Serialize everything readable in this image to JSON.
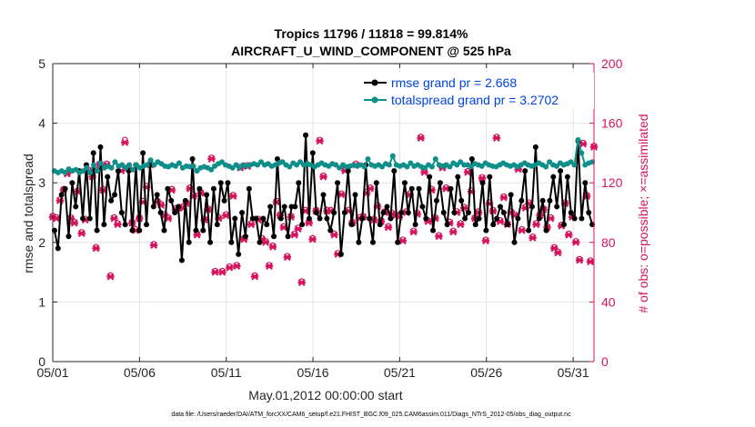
{
  "chart_data": {
    "type": "line",
    "title_line1": "Tropics 11796 / 11818 = 99.814%",
    "title_line2": "AIRCRAFT_U_WIND_COMPONENT @ 525 hPa",
    "xlabel": "May.01,2012 00:00:00 start",
    "ylabel_left": "rmse and totalspread",
    "ylabel_right": "# of obs: o=possible; ×=assimilated",
    "xlim": [
      0,
      31.2
    ],
    "ylim_left": [
      0,
      5
    ],
    "ylim_right": [
      0,
      200
    ],
    "x_ticks": [
      0,
      5,
      10,
      15,
      20,
      25,
      30
    ],
    "x_tick_labels": [
      "05/01",
      "05/06",
      "05/11",
      "05/16",
      "05/21",
      "05/26",
      "05/31"
    ],
    "y_ticks_left": [
      0,
      1,
      2,
      3,
      4,
      5
    ],
    "y_tick_labels_left": [
      "0",
      "1",
      "2",
      "3",
      "4",
      "5"
    ],
    "y_ticks_right": [
      0,
      40,
      80,
      120,
      160,
      200
    ],
    "y_tick_labels_right": [
      "0",
      "40",
      "80",
      "120",
      "160",
      "200"
    ],
    "footnote": "data file: /Users/raeder/DAI/ATM_forcXX/CAM6_setup/f.e21.FHIST_BGC.f09_025.CAM6assim.011/Diags_NTrS_2012-05/obs_diag_output.nc",
    "series": [
      {
        "name": "rmse",
        "legend_label": "rmse grand pr = 2.668",
        "color": "#000000",
        "values": [
          2.2,
          1.9,
          2.8,
          2.9,
          2.1,
          3.0,
          2.6,
          3.2,
          2.4,
          3.3,
          2.4,
          3.5,
          2.2,
          3.6,
          2.3,
          3.1,
          2.7,
          2.8,
          3.2,
          2.5,
          2.3,
          3.2,
          2.2,
          3.3,
          2.2,
          3.5,
          2.3,
          3.3,
          2.6,
          2.8,
          2.5,
          2.2,
          2.9,
          2.7,
          2.5,
          2.6,
          1.7,
          2.7,
          2.0,
          3.4,
          2.2,
          2.9,
          2.2,
          2.8,
          2.0,
          2.9,
          2.3,
          3.0,
          2.7,
          3.0,
          2.0,
          2.4,
          1.8,
          2.5,
          2.1,
          2.9,
          2.4,
          2.4,
          2.0,
          2.4,
          2.3,
          2.6,
          2.1,
          3.4,
          2.4,
          2.6,
          2.1,
          2.6,
          2.6,
          3.0,
          2.3,
          3.8,
          2.4,
          3.5,
          2.5,
          2.4,
          2.8,
          2.4,
          2.2,
          2.5,
          3.0,
          1.8,
          2.5,
          3.2,
          2.3,
          2.8,
          2.0,
          2.4,
          3.3,
          2.4,
          2.0,
          3.0,
          2.3,
          2.5,
          2.6,
          2.4,
          3.2,
          2.0,
          2.5,
          3.0,
          2.5,
          2.9,
          2.3,
          2.9,
          2.6,
          2.4,
          3.1,
          2.2,
          2.7,
          3.0,
          2.5,
          2.3,
          2.9,
          2.5,
          3.1,
          2.7,
          2.4,
          2.5,
          3.4,
          2.3,
          2.4,
          3.0,
          2.2,
          3.1,
          2.3,
          2.4,
          2.6,
          2.5,
          2.3,
          2.8,
          2.0,
          2.4,
          2.7,
          3.2,
          2.2,
          2.6,
          3.6,
          2.4,
          2.7,
          2.2,
          2.7,
          3.1,
          2.6,
          3.2,
          2.3,
          3.1,
          2.5,
          2.4,
          3.7,
          2.4,
          3.0,
          2.5,
          2.3
        ]
      },
      {
        "name": "totalspread",
        "legend_label": "totalspread grand pr = 3.2702",
        "color": "#0f8f8a",
        "values": [
          3.2,
          3.17,
          3.2,
          3.17,
          3.23,
          3.2,
          3.22,
          3.17,
          3.2,
          3.25,
          3.17,
          3.3,
          3.2,
          3.33,
          3.25,
          3.28,
          3.25,
          3.35,
          3.28,
          3.3,
          3.25,
          3.3,
          3.22,
          3.3,
          3.25,
          3.28,
          3.3,
          3.38,
          3.3,
          3.35,
          3.32,
          3.28,
          3.27,
          3.3,
          3.28,
          3.33,
          3.25,
          3.28,
          3.27,
          3.28,
          3.2,
          3.25,
          3.27,
          3.25,
          3.22,
          3.28,
          3.32,
          3.35,
          3.3,
          3.28,
          3.25,
          3.3,
          3.25,
          3.3,
          3.28,
          3.3,
          3.32,
          3.3,
          3.35,
          3.3,
          3.32,
          3.28,
          3.3,
          3.33,
          3.35,
          3.3,
          3.27,
          3.33,
          3.3,
          3.35,
          3.3,
          3.32,
          3.3,
          3.27,
          3.3,
          3.33,
          3.3,
          3.28,
          3.32,
          3.3,
          3.25,
          3.3,
          3.27,
          3.28,
          3.3,
          3.28,
          3.3,
          3.27,
          3.4,
          3.3,
          3.28,
          3.3,
          3.27,
          3.32,
          3.3,
          3.45,
          3.3,
          3.28,
          3.3,
          3.27,
          3.33,
          3.28,
          3.3,
          3.27,
          3.25,
          3.3,
          3.27,
          3.4,
          3.3,
          3.28,
          3.3,
          3.27,
          3.33,
          3.3,
          3.35,
          3.3,
          3.3,
          3.27,
          3.32,
          3.3,
          3.28,
          3.33,
          3.3,
          3.28,
          3.27,
          3.3,
          3.33,
          3.3,
          3.28,
          3.3,
          3.27,
          3.3,
          3.33,
          3.3,
          3.28,
          3.3,
          3.33,
          3.3,
          3.27,
          3.35,
          3.3,
          3.28,
          3.33,
          3.3,
          3.32,
          3.35,
          3.3,
          3.72,
          3.5,
          3.3,
          3.33,
          3.35
        ]
      }
    ],
    "obs_assimilated": {
      "name": "# of obs assimilated",
      "marker": "×",
      "color": "#d6135e",
      "values": [
        97,
        96,
        108,
        115,
        126,
        96,
        93,
        114,
        86,
        95,
        128,
        124,
        76,
        132,
        115,
        132,
        57,
        96,
        92,
        128,
        147,
        130,
        93,
        88,
        96,
        107,
        117,
        132,
        78,
        107,
        105,
        98,
        96,
        115,
        102,
        103,
        103,
        106,
        116,
        111,
        85,
        113,
        95,
        102,
        136,
        60,
        96,
        60,
        98,
        63,
        111,
        64,
        130,
        82,
        131,
        92,
        57,
        95,
        82,
        80,
        64,
        77,
        107,
        98,
        90,
        70,
        97,
        85,
        89,
        53,
        101,
        93,
        82,
        101,
        148,
        124,
        101,
        101,
        85,
        72,
        112,
        128,
        101,
        93,
        132,
        96,
        97,
        113,
        116,
        95,
        104,
        94,
        100,
        90,
        99,
        98,
        97,
        81,
        100,
        112,
        87,
        99,
        150,
        127,
        94,
        115,
        96,
        84,
        130,
        116,
        93,
        87,
        100,
        92,
        103,
        127,
        114,
        96,
        100,
        123,
        81,
        106,
        101,
        150,
        94,
        110,
        92,
        100,
        98,
        129,
        88,
        103,
        106,
        83,
        92,
        98,
        102,
        90,
        96,
        76,
        73,
        91,
        106,
        85,
        97,
        80,
        68,
        146,
        111,
        67,
        144
      ]
    },
    "obs_possible": {
      "name": "# of obs possible",
      "marker": "o",
      "color": "#d6135e",
      "values": [
        98,
        97,
        109,
        116,
        127,
        97,
        94,
        115,
        87,
        96,
        129,
        125,
        77,
        133,
        116,
        133,
        58,
        97,
        93,
        129,
        149,
        131,
        94,
        89,
        97,
        108,
        118,
        133,
        79,
        108,
        106,
        99,
        97,
        116,
        103,
        104,
        104,
        107,
        117,
        112,
        86,
        114,
        96,
        103,
        137,
        61,
        97,
        61,
        99,
        64,
        112,
        65,
        131,
        83,
        132,
        93,
        58,
        96,
        83,
        81,
        65,
        78,
        108,
        99,
        91,
        71,
        98,
        86,
        90,
        54,
        102,
        94,
        83,
        102,
        149,
        125,
        102,
        102,
        86,
        73,
        113,
        129,
        102,
        94,
        133,
        97,
        98,
        114,
        117,
        96,
        105,
        95,
        101,
        91,
        100,
        99,
        98,
        82,
        101,
        113,
        88,
        100,
        151,
        128,
        95,
        116,
        97,
        85,
        131,
        117,
        94,
        88,
        101,
        93,
        104,
        128,
        115,
        97,
        101,
        124,
        82,
        107,
        102,
        151,
        95,
        111,
        93,
        101,
        99,
        130,
        89,
        104,
        107,
        84,
        93,
        99,
        103,
        91,
        97,
        77,
        74,
        92,
        107,
        86,
        98,
        81,
        69,
        147,
        112,
        68,
        145
      ]
    }
  }
}
